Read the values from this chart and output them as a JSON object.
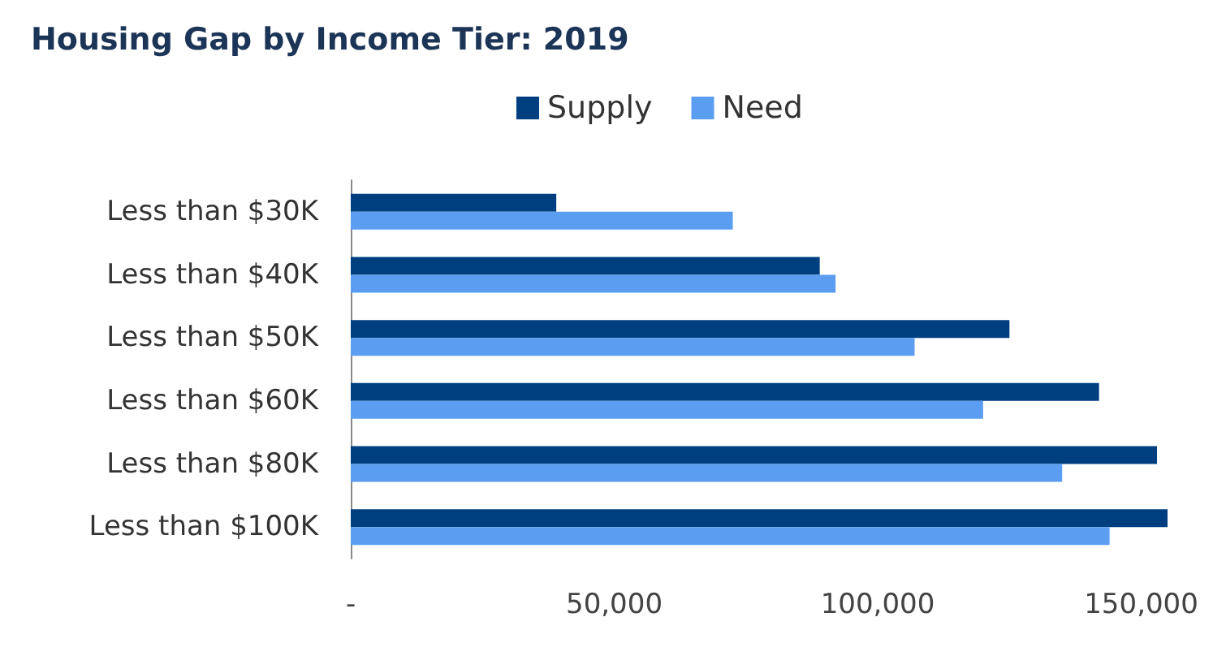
{
  "chart_data": {
    "type": "bar",
    "orientation": "horizontal",
    "title": "Housing Gap by Income Tier: 2019",
    "categories": [
      "Less than $30K",
      "Less than $40K",
      "Less than $50K",
      "Less than $60K",
      "Less than $80K",
      "Less than $100K"
    ],
    "series": [
      {
        "name": "Supply",
        "color": "#003f7f",
        "values": [
          39000,
          89000,
          125000,
          142000,
          153000,
          155000
        ]
      },
      {
        "name": "Need",
        "color": "#5b9df0",
        "values": [
          72500,
          92000,
          107000,
          120000,
          135000,
          144000
        ]
      }
    ],
    "xlim": [
      0,
      155000
    ],
    "xticks": [
      {
        "value": 0,
        "label": "-"
      },
      {
        "value": 50000,
        "label": "50,000"
      },
      {
        "value": 100000,
        "label": "100,000"
      },
      {
        "value": 150000,
        "label": "150,000"
      }
    ],
    "grid": false,
    "legend": "top"
  }
}
